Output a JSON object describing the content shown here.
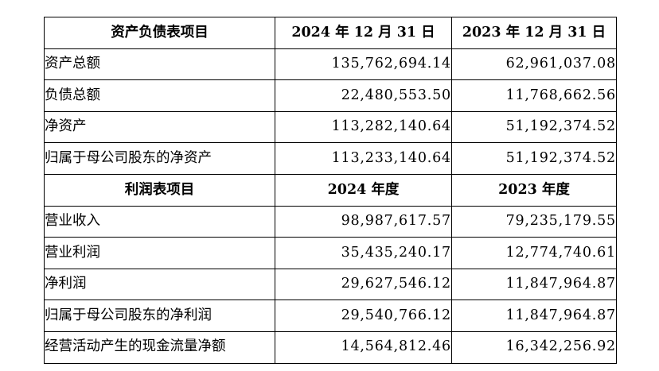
{
  "balance_section": {
    "headers": [
      "资产负债表项目",
      "2024 年 12 月 31 日",
      "2023 年 12 月 31 日"
    ],
    "rows": [
      {
        "label": "资产总额",
        "v2024": "135,762,694.14",
        "v2023": "62,961,037.08"
      },
      {
        "label": "负债总额",
        "v2024": "22,480,553.50",
        "v2023": "11,768,662.56"
      },
      {
        "label": "净资产",
        "v2024": "113,282,140.64",
        "v2023": "51,192,374.52"
      },
      {
        "label": "归属于母公司股东的净资产",
        "v2024": "113,233,140.64",
        "v2023": "51,192,374.52"
      }
    ]
  },
  "income_section": {
    "headers": [
      "利润表项目",
      "2024 年度",
      "2023 年度"
    ],
    "rows": [
      {
        "label": "营业收入",
        "v2024": "98,987,617.57",
        "v2023": "79,235,179.55"
      },
      {
        "label": "营业利润",
        "v2024": "35,435,240.17",
        "v2023": "12,774,740.61"
      },
      {
        "label": "净利润",
        "v2024": "29,627,546.12",
        "v2023": "11,847,964.87"
      },
      {
        "label": "归属于母公司股东的净利润",
        "v2024": "29,540,766.12",
        "v2023": "11,847,964.87"
      },
      {
        "label": "经营活动产生的现金流量净额",
        "v2024": "14,564,812.46",
        "v2023": "16,342,256.92"
      }
    ]
  }
}
